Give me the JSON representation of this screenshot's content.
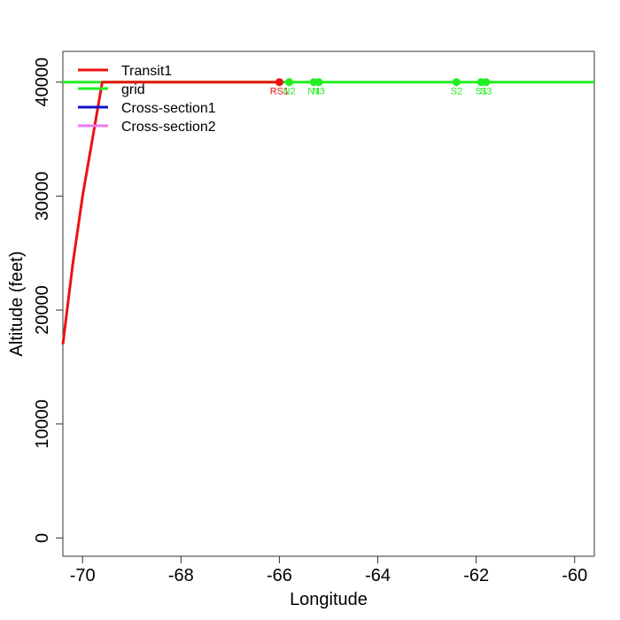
{
  "chart_data": {
    "type": "line",
    "xlabel": "Longitude",
    "ylabel": "Altitude (feet)",
    "xlim": [
      -70.4,
      -59.6
    ],
    "ylim": [
      -1600,
      42700
    ],
    "x_ticks": [
      -70,
      -68,
      -66,
      -64,
      -62,
      -60
    ],
    "y_ticks": [
      0,
      10000,
      20000,
      30000,
      40000
    ],
    "x_tick_labels": [
      "-70",
      "-68",
      "-66",
      "-64",
      "-62",
      "-60"
    ],
    "y_tick_labels": [
      "0",
      "10000",
      "20000",
      "30000",
      "40000"
    ],
    "legend": {
      "position": "top-left",
      "entries": [
        {
          "label": "Transit1",
          "color": "#ee1111"
        },
        {
          "label": "grid",
          "color": "#22ee22"
        },
        {
          "label": "Cross-section1",
          "color": "#1111cc"
        },
        {
          "label": "Cross-section2",
          "color": "#ee77ee"
        }
      ]
    },
    "series": [
      {
        "name": "Transit1",
        "color": "#ee1111",
        "x": [
          -70.4,
          -70.2,
          -70.0,
          -69.8,
          -69.6,
          -69.35,
          -69.0,
          -68.5,
          -67.5,
          -66.8,
          -66.0
        ],
        "y": [
          17000,
          24000,
          30000,
          35000,
          40000,
          40000,
          40000,
          40000,
          40000,
          40000,
          40000
        ]
      },
      {
        "name": "grid",
        "color": "#22ee22",
        "x": [
          -70.4,
          -59.6
        ],
        "y": [
          40000,
          40000
        ]
      }
    ],
    "points": [
      {
        "label": "RS1",
        "x": -66.0,
        "y": 40000,
        "color": "#ee1111"
      },
      {
        "label": "N2",
        "x": -65.8,
        "y": 40000,
        "color": "#22ee22"
      },
      {
        "label": "N1",
        "x": -65.3,
        "y": 40000,
        "color": "#22ee22"
      },
      {
        "label": "N3",
        "x": -65.2,
        "y": 40000,
        "color": "#22ee22"
      },
      {
        "label": "S2",
        "x": -62.4,
        "y": 40000,
        "color": "#22ee22"
      },
      {
        "label": "S1",
        "x": -61.9,
        "y": 40000,
        "color": "#22ee22"
      },
      {
        "label": "S3",
        "x": -61.8,
        "y": 40000,
        "color": "#22ee22"
      }
    ]
  }
}
